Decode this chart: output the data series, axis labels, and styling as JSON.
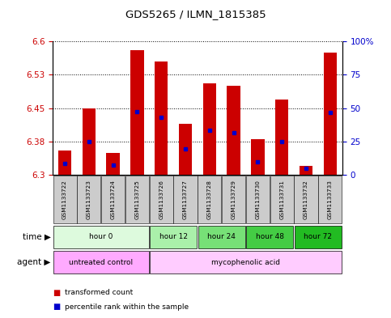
{
  "title": "GDS5265 / ILMN_1815385",
  "samples": [
    "GSM1133722",
    "GSM1133723",
    "GSM1133724",
    "GSM1133725",
    "GSM1133726",
    "GSM1133727",
    "GSM1133728",
    "GSM1133729",
    "GSM1133730",
    "GSM1133731",
    "GSM1133732",
    "GSM1133733"
  ],
  "bar_tops": [
    6.355,
    6.45,
    6.35,
    6.58,
    6.555,
    6.415,
    6.505,
    6.5,
    6.38,
    6.47,
    6.32,
    6.575
  ],
  "bar_bottom": 6.3,
  "blue_marker_pos": [
    6.325,
    6.375,
    6.322,
    6.442,
    6.43,
    6.358,
    6.4,
    6.395,
    6.33,
    6.375,
    6.315,
    6.44
  ],
  "ylim": [
    6.3,
    6.6
  ],
  "yticks_left": [
    6.3,
    6.375,
    6.45,
    6.525,
    6.6
  ],
  "yticks_right": [
    0,
    25,
    50,
    75,
    100
  ],
  "bar_color": "#cc0000",
  "blue_color": "#0000cc",
  "time_groups": [
    {
      "label": "hour 0",
      "start": 0,
      "end": 4,
      "color": "#ddfadd"
    },
    {
      "label": "hour 12",
      "start": 4,
      "end": 6,
      "color": "#aaf0aa"
    },
    {
      "label": "hour 24",
      "start": 6,
      "end": 8,
      "color": "#77e077"
    },
    {
      "label": "hour 48",
      "start": 8,
      "end": 10,
      "color": "#44cc44"
    },
    {
      "label": "hour 72",
      "start": 10,
      "end": 12,
      "color": "#22bb22"
    }
  ],
  "agent_groups": [
    {
      "label": "untreated control",
      "start": 0,
      "end": 4,
      "color": "#ffaaff"
    },
    {
      "label": "mycophenolic acid",
      "start": 4,
      "end": 12,
      "color": "#ffccff"
    }
  ],
  "time_label": "time",
  "agent_label": "agent",
  "legend_red": "transformed count",
  "legend_blue": "percentile rank within the sample",
  "left_tick_color": "#cc0000",
  "right_tick_color": "#0000cc",
  "sample_bg_color": "#cccccc",
  "bar_width": 0.55
}
